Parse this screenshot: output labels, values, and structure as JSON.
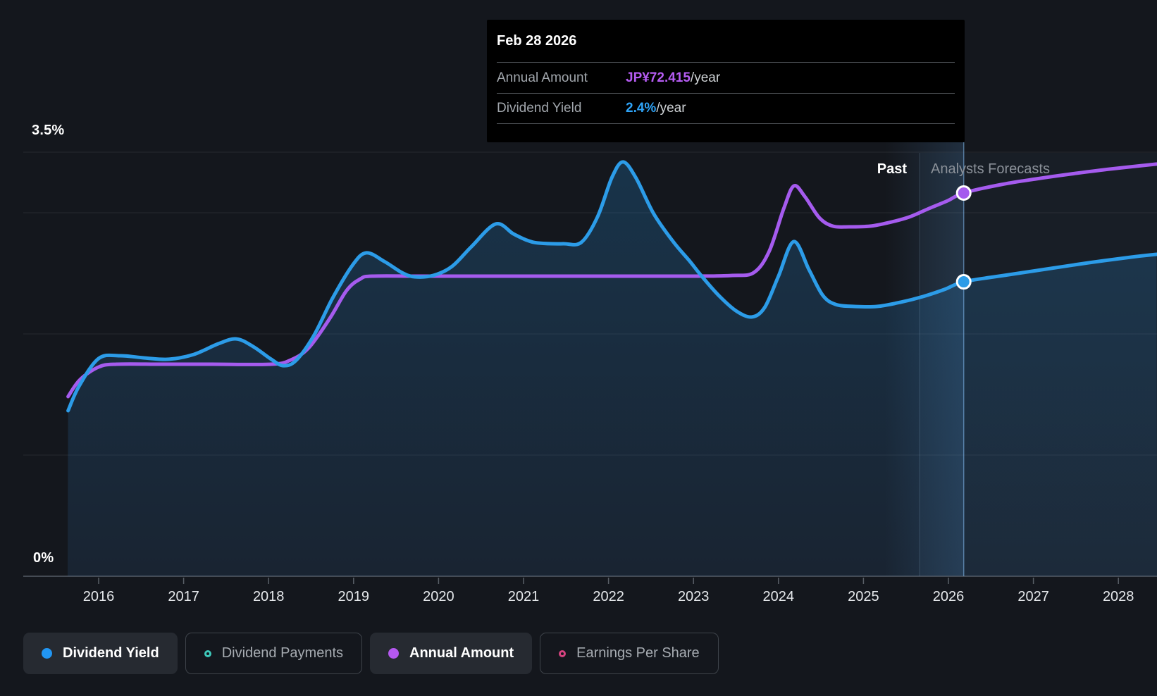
{
  "tooltip": {
    "date": "Feb 28 2026",
    "rows": [
      {
        "label": "Annual Amount",
        "value": "JP¥72.415",
        "suffix": "/year",
        "color": "#b55cf2"
      },
      {
        "label": "Dividend Yield",
        "value": "2.4%",
        "suffix": "/year",
        "color": "#2fa4f8"
      }
    ]
  },
  "axes": {
    "y_top_label": "3.5%",
    "y_bottom_label": "0%",
    "years": [
      "2016",
      "2017",
      "2018",
      "2019",
      "2020",
      "2021",
      "2022",
      "2023",
      "2024",
      "2025",
      "2026",
      "2027",
      "2028"
    ]
  },
  "annotations": {
    "past": "Past",
    "forecast": "Analysts Forecasts"
  },
  "legend": [
    {
      "label": "Dividend Yield",
      "color": "#2196f3",
      "filled": true,
      "active": true
    },
    {
      "label": "Dividend Payments",
      "color": "#3ec9bb",
      "filled": false,
      "active": false
    },
    {
      "label": "Annual Amount",
      "color": "#b558f0",
      "filled": true,
      "active": true
    },
    {
      "label": "Earnings Per Share",
      "color": "#d6437f",
      "filled": false,
      "active": false
    }
  ],
  "chart_data": {
    "type": "area",
    "title": "Dividend history and forecast",
    "x_axis": {
      "ticks": [
        2016,
        2017,
        2018,
        2019,
        2020,
        2021,
        2022,
        2023,
        2024,
        2025,
        2026,
        2027,
        2028
      ],
      "range": [
        2015.35,
        2028.45
      ]
    },
    "y_axis": {
      "unit": "%",
      "range": [
        0,
        3.5
      ],
      "gridlines": [
        3.5,
        3,
        2,
        1
      ],
      "shown_labels": [
        "3.5%",
        "0%"
      ]
    },
    "forecast_divider_year": 2025.66,
    "hover_year": 2026.18,
    "hover_band_start_year": 2025.25,
    "legend_position": "bottom",
    "grid": true,
    "series": [
      {
        "name": "Dividend Yield",
        "unit": "%",
        "color": "#2c9ce8",
        "style": "line+area",
        "points": [
          [
            2015.64,
            1.366
          ],
          [
            2015.77,
            1.57
          ],
          [
            2016.0,
            1.797
          ],
          [
            2016.25,
            1.82
          ],
          [
            2016.54,
            1.802
          ],
          [
            2016.83,
            1.791
          ],
          [
            2017.12,
            1.831
          ],
          [
            2017.41,
            1.919
          ],
          [
            2017.62,
            1.959
          ],
          [
            2017.82,
            1.895
          ],
          [
            2018.03,
            1.791
          ],
          [
            2018.17,
            1.738
          ],
          [
            2018.32,
            1.779
          ],
          [
            2018.53,
            1.983
          ],
          [
            2018.75,
            2.291
          ],
          [
            2018.99,
            2.57
          ],
          [
            2019.15,
            2.669
          ],
          [
            2019.36,
            2.599
          ],
          [
            2019.57,
            2.506
          ],
          [
            2019.72,
            2.471
          ],
          [
            2019.94,
            2.483
          ],
          [
            2020.16,
            2.558
          ],
          [
            2020.38,
            2.715
          ],
          [
            2020.67,
            2.907
          ],
          [
            2020.88,
            2.826
          ],
          [
            2021.04,
            2.773
          ],
          [
            2021.18,
            2.75
          ],
          [
            2021.47,
            2.744
          ],
          [
            2021.68,
            2.756
          ],
          [
            2021.87,
            2.965
          ],
          [
            2022.04,
            3.291
          ],
          [
            2022.17,
            3.419
          ],
          [
            2022.32,
            3.291
          ],
          [
            2022.53,
            2.994
          ],
          [
            2022.76,
            2.762
          ],
          [
            2022.95,
            2.605
          ],
          [
            2023.11,
            2.465
          ],
          [
            2023.31,
            2.308
          ],
          [
            2023.51,
            2.186
          ],
          [
            2023.69,
            2.14
          ],
          [
            2023.84,
            2.221
          ],
          [
            2024.0,
            2.477
          ],
          [
            2024.18,
            2.762
          ],
          [
            2024.36,
            2.529
          ],
          [
            2024.52,
            2.32
          ],
          [
            2024.67,
            2.244
          ],
          [
            2024.89,
            2.227
          ],
          [
            2025.16,
            2.227
          ],
          [
            2025.44,
            2.262
          ],
          [
            2025.7,
            2.308
          ],
          [
            2025.95,
            2.366
          ],
          [
            2026.18,
            2.43
          ],
          [
            2026.66,
            2.483
          ],
          [
            2027.15,
            2.535
          ],
          [
            2027.65,
            2.587
          ],
          [
            2028.15,
            2.634
          ],
          [
            2028.45,
            2.657
          ]
        ]
      },
      {
        "name": "Annual Amount",
        "unit": "JP¥",
        "color": "#a55bee",
        "style": "line",
        "points": [
          [
            2015.64,
            33.94
          ],
          [
            2015.78,
            37.14
          ],
          [
            2016.0,
            39.54
          ],
          [
            2016.21,
            40.07
          ],
          [
            2016.75,
            40.07
          ],
          [
            2017.33,
            40.07
          ],
          [
            2018.03,
            40.07
          ],
          [
            2018.26,
            40.87
          ],
          [
            2018.47,
            43.13
          ],
          [
            2018.72,
            48.72
          ],
          [
            2018.92,
            54.05
          ],
          [
            2019.08,
            56.18
          ],
          [
            2019.22,
            56.71
          ],
          [
            2019.81,
            56.71
          ],
          [
            2020.64,
            56.71
          ],
          [
            2021.47,
            56.71
          ],
          [
            2022.3,
            56.71
          ],
          [
            2023.05,
            56.71
          ],
          [
            2023.46,
            56.84
          ],
          [
            2023.71,
            57.38
          ],
          [
            2023.89,
            61.37
          ],
          [
            2024.06,
            69.36
          ],
          [
            2024.18,
            73.75
          ],
          [
            2024.31,
            71.75
          ],
          [
            2024.48,
            67.76
          ],
          [
            2024.64,
            66.16
          ],
          [
            2024.83,
            66.03
          ],
          [
            2025.08,
            66.16
          ],
          [
            2025.3,
            66.83
          ],
          [
            2025.54,
            67.89
          ],
          [
            2025.77,
            69.49
          ],
          [
            2025.99,
            70.95
          ],
          [
            2026.18,
            72.42
          ],
          [
            2026.62,
            74.01
          ],
          [
            2027.03,
            75.08
          ],
          [
            2027.44,
            76.01
          ],
          [
            2027.9,
            76.94
          ],
          [
            2028.45,
            77.88
          ]
        ]
      }
    ],
    "markers": [
      {
        "series": "Annual Amount",
        "year": 2026.18,
        "value": 72.415
      },
      {
        "series": "Dividend Yield",
        "year": 2026.18,
        "value": 2.43
      }
    ]
  }
}
